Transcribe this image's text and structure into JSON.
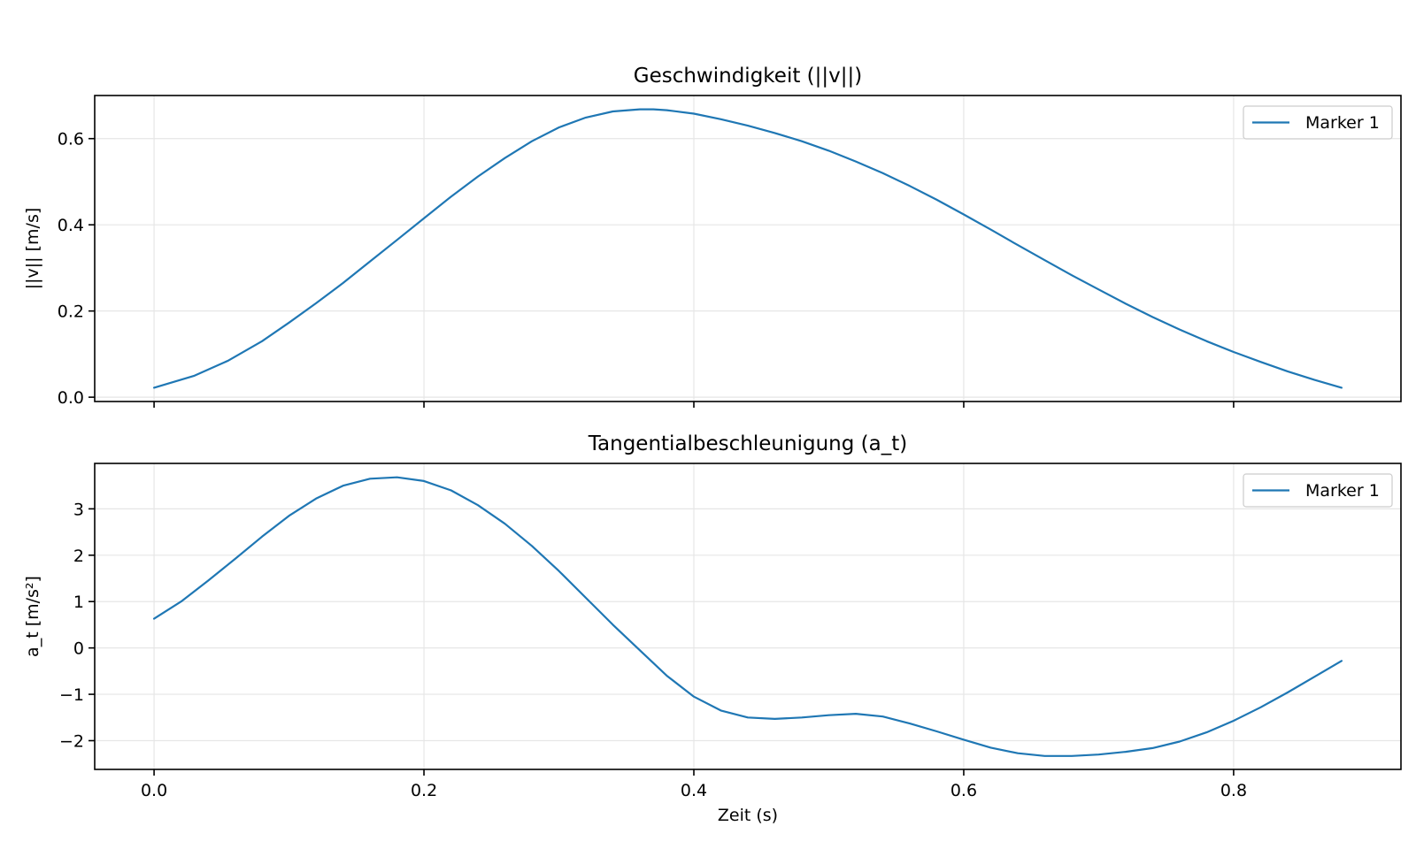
{
  "chart_data": [
    {
      "type": "line",
      "title": "Geschwindigkeit (||v||)",
      "xlabel": "",
      "ylabel": "||v|| [m/s]",
      "xlim": [
        -0.044,
        0.924
      ],
      "ylim": [
        -0.01,
        0.7
      ],
      "xticks": [
        0.0,
        0.2,
        0.4,
        0.6,
        0.8
      ],
      "xtick_labels": [],
      "yticks": [
        0.0,
        0.2,
        0.4,
        0.6
      ],
      "ytick_labels": [
        "0.0",
        "0.2",
        "0.4",
        "0.6"
      ],
      "grid": true,
      "legend_position": "top-right",
      "series": [
        {
          "name": "Marker 1",
          "color": "#1f77b4",
          "x": [
            0.0,
            0.03,
            0.055,
            0.08,
            0.1,
            0.12,
            0.14,
            0.16,
            0.18,
            0.2,
            0.22,
            0.24,
            0.26,
            0.28,
            0.3,
            0.32,
            0.34,
            0.36,
            0.37,
            0.38,
            0.4,
            0.42,
            0.44,
            0.46,
            0.48,
            0.5,
            0.52,
            0.54,
            0.56,
            0.58,
            0.6,
            0.62,
            0.64,
            0.66,
            0.68,
            0.7,
            0.72,
            0.74,
            0.76,
            0.78,
            0.8,
            0.82,
            0.84,
            0.86,
            0.88
          ],
          "y": [
            0.022,
            0.05,
            0.085,
            0.13,
            0.173,
            0.218,
            0.265,
            0.315,
            0.365,
            0.415,
            0.465,
            0.512,
            0.555,
            0.594,
            0.626,
            0.649,
            0.663,
            0.668,
            0.668,
            0.666,
            0.658,
            0.645,
            0.63,
            0.613,
            0.594,
            0.572,
            0.547,
            0.52,
            0.49,
            0.458,
            0.424,
            0.389,
            0.353,
            0.318,
            0.283,
            0.25,
            0.217,
            0.186,
            0.157,
            0.13,
            0.105,
            0.082,
            0.06,
            0.04,
            0.022
          ]
        }
      ]
    },
    {
      "type": "line",
      "title": "Tangentialbeschleunigung (a_t)",
      "xlabel": "Zeit (s)",
      "ylabel": "a_t [m/s²]",
      "xlim": [
        -0.044,
        0.924
      ],
      "ylim": [
        -2.62,
        3.98
      ],
      "xticks": [
        0.0,
        0.2,
        0.4,
        0.6,
        0.8
      ],
      "xtick_labels": [
        "0.0",
        "0.2",
        "0.4",
        "0.6",
        "0.8"
      ],
      "yticks": [
        -2,
        -1,
        0,
        1,
        2,
        3
      ],
      "ytick_labels": [
        "−2",
        "−1",
        "0",
        "1",
        "2",
        "3"
      ],
      "grid": true,
      "legend_position": "top-right",
      "series": [
        {
          "name": "Marker 1",
          "color": "#1f77b4",
          "x": [
            0.0,
            0.02,
            0.04,
            0.06,
            0.08,
            0.1,
            0.12,
            0.14,
            0.16,
            0.18,
            0.2,
            0.22,
            0.24,
            0.26,
            0.28,
            0.3,
            0.32,
            0.34,
            0.36,
            0.38,
            0.4,
            0.42,
            0.44,
            0.46,
            0.48,
            0.5,
            0.52,
            0.54,
            0.56,
            0.58,
            0.6,
            0.62,
            0.64,
            0.66,
            0.68,
            0.7,
            0.72,
            0.74,
            0.76,
            0.78,
            0.8,
            0.82,
            0.84,
            0.86,
            0.88
          ],
          "y": [
            0.63,
            1.0,
            1.45,
            1.92,
            2.4,
            2.85,
            3.22,
            3.5,
            3.65,
            3.68,
            3.6,
            3.4,
            3.08,
            2.68,
            2.2,
            1.66,
            1.08,
            0.5,
            -0.05,
            -0.6,
            -1.05,
            -1.35,
            -1.5,
            -1.53,
            -1.5,
            -1.45,
            -1.42,
            -1.48,
            -1.63,
            -1.8,
            -1.98,
            -2.15,
            -2.27,
            -2.33,
            -2.33,
            -2.3,
            -2.24,
            -2.16,
            -2.02,
            -1.82,
            -1.57,
            -1.28,
            -0.96,
            -0.62,
            -0.28
          ]
        }
      ]
    }
  ]
}
